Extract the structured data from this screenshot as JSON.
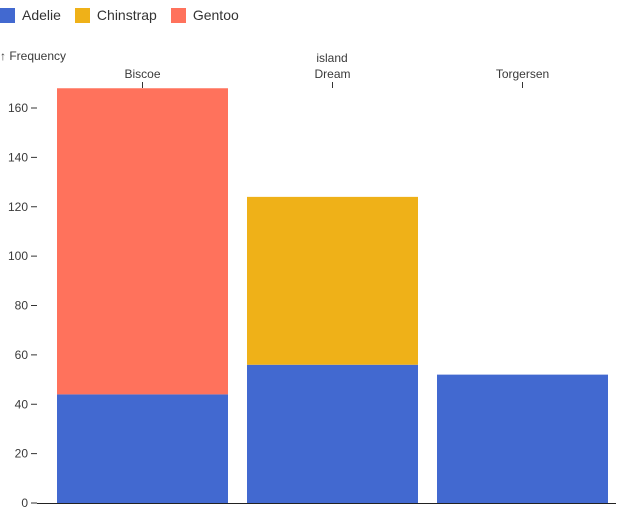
{
  "chart_data": {
    "type": "bar",
    "stacked": true,
    "xlabel": "island",
    "ylabel": "↑ Frequency",
    "categories": [
      "Biscoe",
      "Dream",
      "Torgersen"
    ],
    "ylim": [
      0,
      160
    ],
    "yticks": [
      0,
      20,
      40,
      60,
      80,
      100,
      120,
      140,
      160
    ],
    "grid": false,
    "legend_position": "top-left",
    "series": [
      {
        "name": "Adelie",
        "color": "#4269d0",
        "values": [
          44,
          56,
          52
        ]
      },
      {
        "name": "Chinstrap",
        "color": "#efb118",
        "values": [
          0,
          68,
          0
        ]
      },
      {
        "name": "Gentoo",
        "color": "#ff725c",
        "values": [
          124,
          0,
          0
        ]
      }
    ]
  }
}
